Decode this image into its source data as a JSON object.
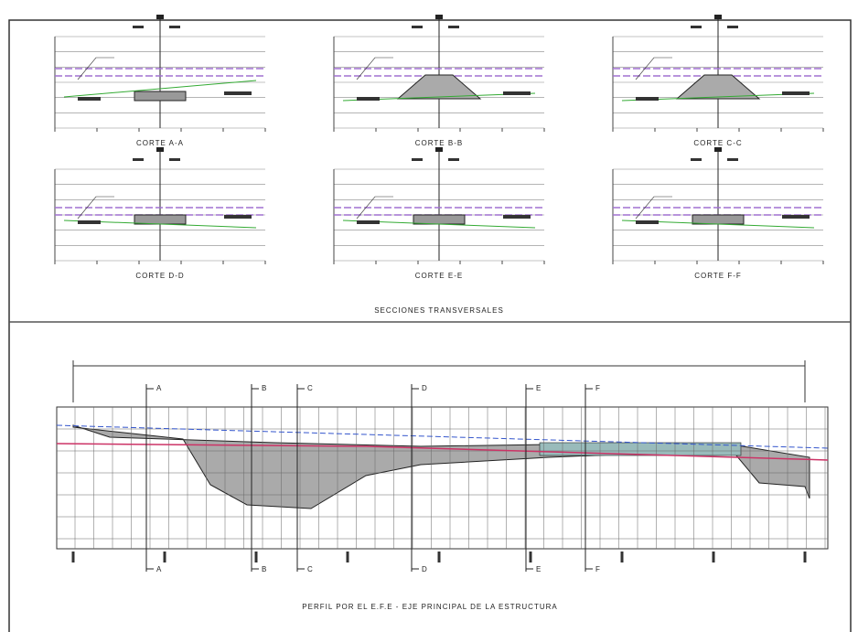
{
  "sections": [
    {
      "label": "CORTE A-A"
    },
    {
      "label": "CORTE B-B"
    },
    {
      "label": "CORTE C-C"
    },
    {
      "label": "CORTE D-D"
    },
    {
      "label": "CORTE E-E"
    },
    {
      "label": "CORTE F-F"
    }
  ],
  "sections_title": "SECCIONES TRANSVERSALES",
  "profile": {
    "markers": [
      "A",
      "B",
      "C",
      "D",
      "E",
      "F"
    ],
    "title": "PERFIL POR EL E.F.E - EJE PRINCIPAL DE LA ESTRUCTURA"
  }
}
